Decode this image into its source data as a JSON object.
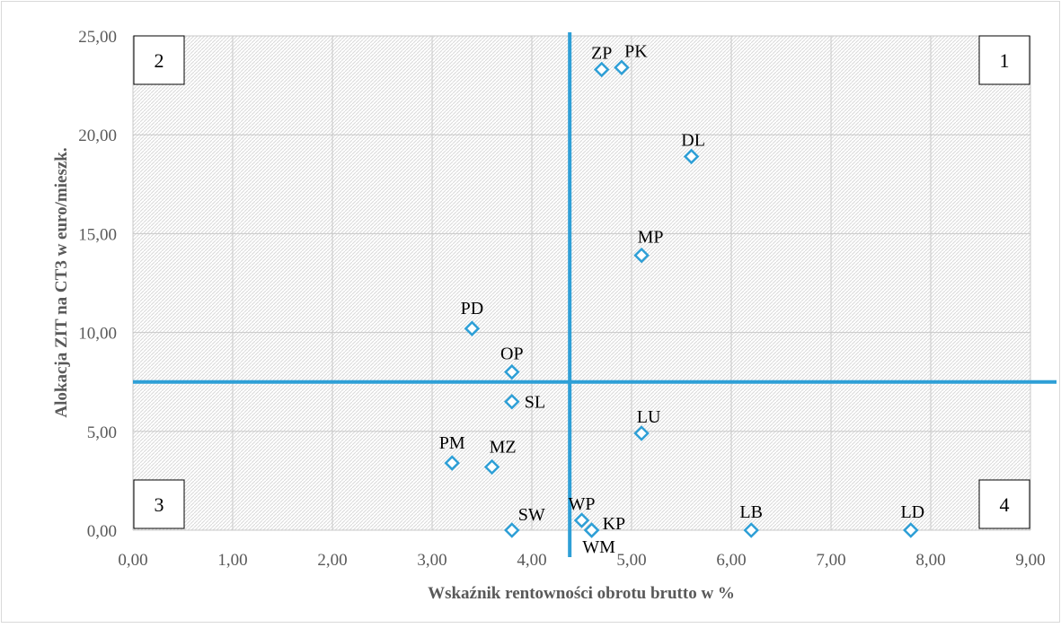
{
  "chart_data": {
    "type": "scatter",
    "xlabel": "Wskaźnik rentowności obrotu brutto w %",
    "ylabel": "Alokacja ZIT na CT3 w euro/mieszk.",
    "xlim": [
      0,
      9
    ],
    "ylim": [
      0,
      25
    ],
    "x_ticks": [
      "0,00",
      "1,00",
      "2,00",
      "3,00",
      "4,00",
      "5,00",
      "6,00",
      "7,00",
      "8,00",
      "9,00"
    ],
    "y_ticks": [
      "0,00",
      "5,00",
      "10,00",
      "15,00",
      "20,00",
      "25,00"
    ],
    "grid": true,
    "reference_lines": {
      "x": 4.38,
      "y": 7.5
    },
    "quadrants": [
      "1",
      "2",
      "3",
      "4"
    ],
    "points": [
      {
        "label": "ZP",
        "x": 4.7,
        "y": 23.3
      },
      {
        "label": "PK",
        "x": 4.9,
        "y": 23.4
      },
      {
        "label": "DL",
        "x": 5.6,
        "y": 18.9
      },
      {
        "label": "MP",
        "x": 5.1,
        "y": 13.9
      },
      {
        "label": "PD",
        "x": 3.4,
        "y": 10.2
      },
      {
        "label": "OP",
        "x": 3.8,
        "y": 8.0
      },
      {
        "label": "SL",
        "x": 3.8,
        "y": 6.5
      },
      {
        "label": "LU",
        "x": 5.1,
        "y": 4.9
      },
      {
        "label": "PM",
        "x": 3.2,
        "y": 3.4
      },
      {
        "label": "MZ",
        "x": 3.6,
        "y": 3.2
      },
      {
        "label": "WP",
        "x": 4.5,
        "y": 0.5
      },
      {
        "label": "KP",
        "x": 4.6,
        "y": 0.0
      },
      {
        "label": "WM",
        "x": 4.6,
        "y": 0.0
      },
      {
        "label": "SW",
        "x": 3.8,
        "y": 0.0
      },
      {
        "label": "LB",
        "x": 6.2,
        "y": 0.0
      },
      {
        "label": "LD",
        "x": 7.8,
        "y": 0.0
      }
    ],
    "colors": {
      "marker": "#2e9fd6",
      "reference_line": "#2e9fd6",
      "grid": "#c8c8c8"
    }
  }
}
